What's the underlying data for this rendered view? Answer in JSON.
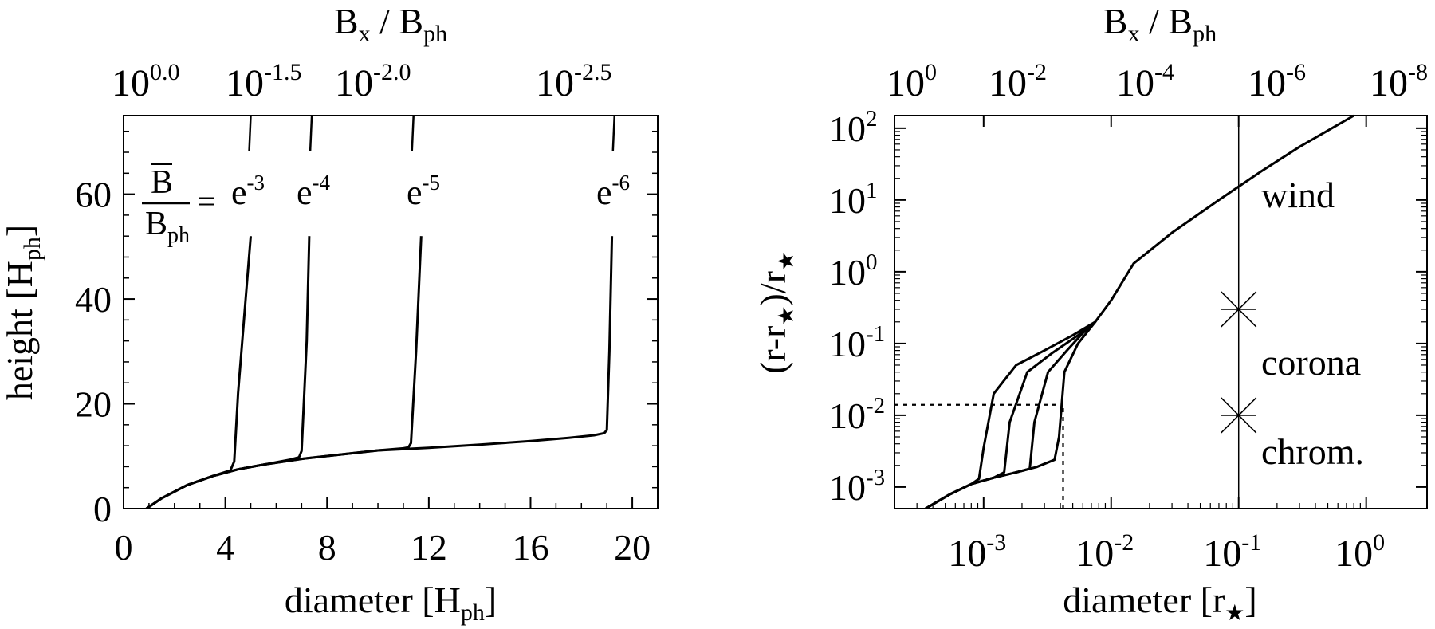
{
  "chart_data": [
    {
      "type": "line",
      "xlabel": "diameter [H",
      "xlabel_sub": "ph",
      "xlabel_end": "]",
      "ylabel": "height [H",
      "ylabel_sub": "ph",
      "ylabel_end": "]",
      "top_axis_label": {
        "main": "B",
        "sub1": "x",
        "mid": " / B",
        "sub2": "ph"
      },
      "xlim": [
        0,
        21
      ],
      "ylim": [
        0,
        75
      ],
      "x_ticks": [
        0,
        4,
        8,
        12,
        16,
        20
      ],
      "y_ticks": [
        0,
        20,
        40,
        60
      ],
      "top_ticks": [
        {
          "base": "10",
          "exp": "0.0",
          "x": 0.0
        },
        {
          "base": "10",
          "exp": "-1.5",
          "x": 4.9
        },
        {
          "base": "10",
          "exp": "-2.0",
          "x": 7.5
        },
        {
          "base": "10",
          "exp": "-2.5",
          "x": 19.4
        }
      ],
      "top_tick_marks": [
        5.0,
        7.4,
        11.4,
        19.3
      ],
      "fraction_label": {
        "num": "B",
        "den": "B",
        "den_sub": "ph",
        "eq": "="
      },
      "series": [
        {
          "name": "e",
          "exp": "-3",
          "x": [
            0.9,
            1.5,
            2.5,
            3.5,
            4.2,
            4.35,
            4.5,
            4.8,
            5.0
          ],
          "y": [
            0,
            2,
            4.5,
            6.2,
            7.3,
            9,
            22,
            40,
            52
          ]
        },
        {
          "name": "e",
          "exp": "-4",
          "x": [
            0.9,
            1.5,
            2.5,
            3.5,
            4.5,
            5.5,
            6.5,
            6.9,
            7.0,
            7.2,
            7.3
          ],
          "y": [
            0,
            2,
            4.5,
            6.2,
            7.5,
            8.4,
            9.3,
            9.8,
            11,
            32,
            52
          ]
        },
        {
          "name": "e",
          "exp": "-5",
          "x": [
            0.9,
            1.5,
            2.5,
            3.5,
            4.5,
            5.5,
            7,
            8.5,
            10,
            11,
            11.2,
            11.3,
            11.5,
            11.7
          ],
          "y": [
            0,
            2,
            4.5,
            6.2,
            7.5,
            8.4,
            9.5,
            10.3,
            11.1,
            11.5,
            11.7,
            12.5,
            30,
            52
          ]
        },
        {
          "name": "e",
          "exp": "-6",
          "x": [
            0.9,
            1.5,
            2.5,
            3.5,
            4.5,
            5.5,
            7,
            8.5,
            10,
            12,
            14,
            16,
            17.5,
            18.5,
            18.9,
            19.0,
            19.1,
            19.2
          ],
          "y": [
            0,
            2,
            4.5,
            6.2,
            7.5,
            8.4,
            9.5,
            10.3,
            11.1,
            11.6,
            12.2,
            12.9,
            13.5,
            14,
            14.4,
            15,
            30,
            52
          ]
        }
      ]
    },
    {
      "type": "line",
      "xscale": "log",
      "yscale": "log",
      "xlabel": "diameter [r",
      "xlabel_end": "]",
      "ylabel": "(r-r",
      "ylabel_mid": ")/r",
      "star": "★",
      "top_axis_label": {
        "main": "B",
        "sub1": "x",
        "mid": " / B",
        "sub2": "ph"
      },
      "xlim": [
        0.0002,
        3.0
      ],
      "ylim": [
        0.0005,
        150
      ],
      "x_ticks": [
        {
          "base": "10",
          "exp": "-3",
          "value": 0.001
        },
        {
          "base": "10",
          "exp": "-2",
          "value": 0.01
        },
        {
          "base": "10",
          "exp": "-1",
          "value": 0.1
        },
        {
          "base": "10",
          "exp": "0",
          "value": 1.0
        }
      ],
      "y_ticks": [
        {
          "base": "10",
          "exp": "-3",
          "value": 0.001
        },
        {
          "base": "10",
          "exp": "-2",
          "value": 0.01
        },
        {
          "base": "10",
          "exp": "-1",
          "value": 0.1
        },
        {
          "base": "10",
          "exp": "0",
          "value": 1
        },
        {
          "base": "10",
          "exp": "1",
          "value": 10
        },
        {
          "base": "10",
          "exp": "2",
          "value": 100
        }
      ],
      "top_ticks": [
        {
          "base": "10",
          "exp": "0",
          "x": 0.0002
        },
        {
          "base": "10",
          "exp": "-2",
          "x": 0.002
        },
        {
          "base": "10",
          "exp": "-4",
          "x": 0.02
        },
        {
          "base": "10",
          "exp": "-6",
          "x": 0.2
        },
        {
          "base": "10",
          "exp": "-8",
          "x": 2.0
        }
      ],
      "region_labels": [
        "wind",
        "corona",
        "chrom."
      ],
      "vertical_line_x": 0.1,
      "markers": [
        {
          "x": 0.1,
          "y": 0.3
        },
        {
          "x": 0.1,
          "y": 0.01
        }
      ],
      "dotted_h": {
        "y": 0.014,
        "x_from": 0.0002,
        "x_to": 0.0042
      },
      "dotted_v": {
        "x": 0.0042,
        "y_from": 0.0005,
        "y_to": 0.014
      },
      "series": [
        {
          "x": [
            0.00035,
            0.00055,
            0.0008,
            0.00092,
            0.001,
            0.0012,
            0.0018,
            0.003,
            0.005,
            0.0075,
            0.01,
            0.015,
            0.03,
            0.07,
            0.15,
            0.3,
            0.8
          ],
          "y": [
            0.0005,
            0.0008,
            0.0011,
            0.0013,
            0.0035,
            0.02,
            0.05,
            0.08,
            0.13,
            0.2,
            0.4,
            1.3,
            3.5,
            10,
            25,
            55,
            150
          ]
        },
        {
          "x": [
            0.00035,
            0.00055,
            0.0008,
            0.0012,
            0.00145,
            0.0016,
            0.0022,
            0.0035,
            0.0055,
            0.0075
          ],
          "y": [
            0.0005,
            0.0008,
            0.0011,
            0.00135,
            0.0016,
            0.008,
            0.04,
            0.075,
            0.13,
            0.2
          ]
        },
        {
          "x": [
            0.00035,
            0.00055,
            0.0008,
            0.0012,
            0.0018,
            0.0023,
            0.0025,
            0.0032,
            0.0045,
            0.006,
            0.0075
          ],
          "y": [
            0.0005,
            0.0008,
            0.0011,
            0.00135,
            0.0016,
            0.0018,
            0.008,
            0.04,
            0.08,
            0.14,
            0.2
          ]
        },
        {
          "x": [
            0.00035,
            0.00055,
            0.0008,
            0.0012,
            0.0018,
            0.0026,
            0.0036,
            0.0039,
            0.0043,
            0.0055,
            0.0075
          ],
          "y": [
            0.0005,
            0.0008,
            0.0011,
            0.00135,
            0.0016,
            0.0019,
            0.0024,
            0.005,
            0.04,
            0.1,
            0.2
          ]
        }
      ]
    }
  ]
}
